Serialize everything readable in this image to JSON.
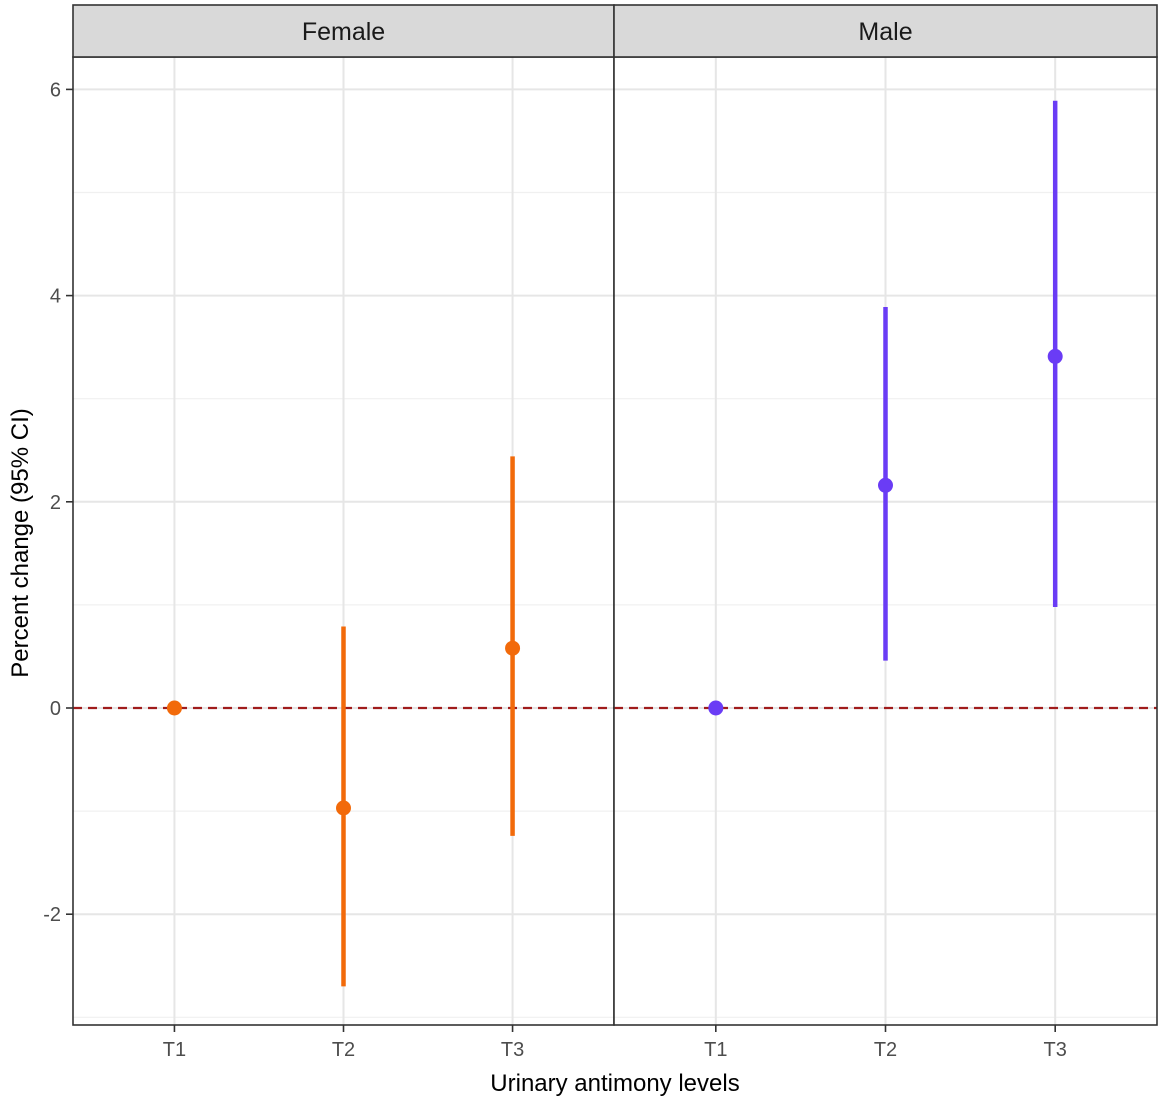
{
  "chart_data": {
    "type": "scatter",
    "subtype": "point-range faceted",
    "xlabel": "Urinary antimony levels",
    "ylabel": "Percent change (95% CI)",
    "categories": [
      "T1",
      "T2",
      "T3"
    ],
    "ylim": [
      -3.0,
      6.35
    ],
    "yticks": [
      -2,
      0,
      2,
      4,
      6
    ],
    "grid": true,
    "reference_line": {
      "y": 0,
      "style": "dashed",
      "color": "#a01c1c"
    },
    "facets": [
      {
        "label": "Female",
        "color": "#f26a0a",
        "points": [
          {
            "x": "T1",
            "estimate": 0.0,
            "lower": null,
            "upper": null
          },
          {
            "x": "T2",
            "estimate": -0.97,
            "lower": -2.7,
            "upper": 0.79
          },
          {
            "x": "T3",
            "estimate": 0.58,
            "lower": -1.24,
            "upper": 2.44
          }
        ]
      },
      {
        "label": "Male",
        "color": "#6a3cf5",
        "points": [
          {
            "x": "T1",
            "estimate": 0.0,
            "lower": null,
            "upper": null
          },
          {
            "x": "T2",
            "estimate": 2.16,
            "lower": 0.46,
            "upper": 3.89
          },
          {
            "x": "T3",
            "estimate": 3.41,
            "lower": 0.98,
            "upper": 5.89
          }
        ]
      }
    ]
  }
}
